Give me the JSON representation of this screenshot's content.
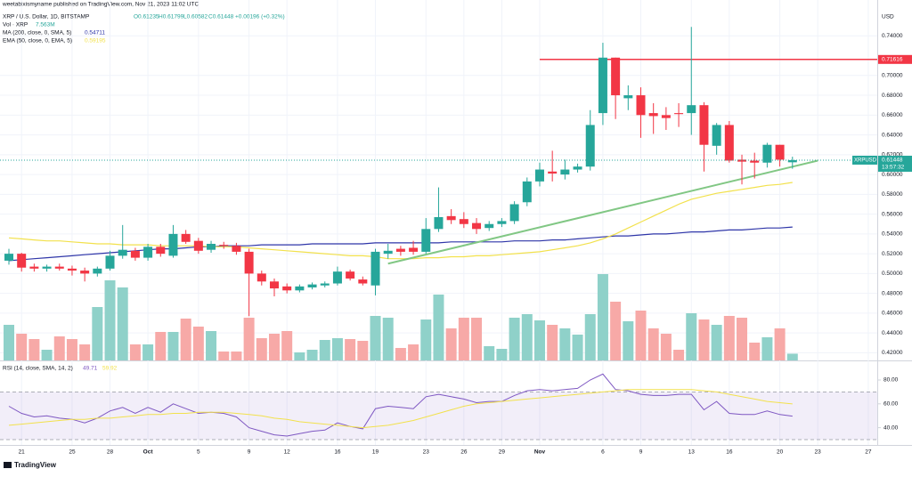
{
  "header": {
    "published": "weetabixismyname published on TradingView.com, Nov 21, 2023 11:02 UTC"
  },
  "footer": {
    "logo": "TradingView"
  },
  "chart_data": [
    {
      "type": "candlestick",
      "title": "XRP / U.S. Dollar, 1D, BITSTAMP",
      "legend_values": [
        "O0.61235",
        "H0.61799",
        "L0.60582",
        "C0.61448",
        "+0.00196 (+0.32%)"
      ],
      "categories": [
        null,
        "21",
        null,
        null,
        null,
        "25",
        null,
        null,
        "28",
        null,
        null,
        "Oct",
        null,
        null,
        null,
        "5",
        null,
        null,
        null,
        "9",
        null,
        null,
        "12",
        null,
        null,
        null,
        "16",
        null,
        null,
        "19",
        null,
        null,
        null,
        "23",
        null,
        null,
        "26",
        null,
        null,
        "29",
        null,
        null,
        "Nov",
        null,
        null,
        null,
        null,
        "6",
        null,
        null,
        "9",
        null,
        null,
        null,
        "13",
        null,
        null,
        "16",
        null,
        null,
        null,
        "20",
        null,
        null,
        "23",
        null,
        null,
        null,
        "27"
      ],
      "open": [
        0.513,
        0.52,
        0.507,
        0.505,
        0.507,
        0.505,
        0.503,
        0.5,
        0.505,
        0.518,
        0.523,
        0.516,
        0.527,
        0.518,
        0.54,
        0.533,
        0.524,
        0.529,
        0.528,
        0.522,
        0.5,
        0.492,
        0.487,
        0.483,
        0.486,
        0.488,
        0.49,
        0.502,
        0.494,
        0.488,
        0.52,
        0.525,
        0.526,
        0.522,
        0.545,
        0.558,
        0.555,
        0.551,
        0.546,
        0.55,
        0.553,
        0.572,
        0.593,
        0.603,
        0.6,
        0.605,
        0.608,
        0.662,
        0.718,
        0.677,
        0.68,
        0.662,
        0.66,
        0.662,
        0.662,
        0.67,
        0.629,
        0.65,
        0.615,
        0.614,
        0.612,
        0.63,
        0.61235,
        null,
        null,
        null,
        null,
        null,
        null
      ],
      "high": [
        0.525,
        0.521,
        0.51,
        0.509,
        0.51,
        0.508,
        0.506,
        0.507,
        0.523,
        0.549,
        0.526,
        0.53,
        0.53,
        0.549,
        0.544,
        0.536,
        0.533,
        0.532,
        0.531,
        0.525,
        0.503,
        0.495,
        0.49,
        0.489,
        0.491,
        0.492,
        0.507,
        0.504,
        0.497,
        0.525,
        0.53,
        0.528,
        0.533,
        0.556,
        0.587,
        0.565,
        0.562,
        0.556,
        0.553,
        0.556,
        0.573,
        0.597,
        0.612,
        0.624,
        0.615,
        0.611,
        0.665,
        0.733,
        0.718,
        0.69,
        0.688,
        0.672,
        0.668,
        0.672,
        0.749,
        0.673,
        0.652,
        0.654,
        0.62,
        0.622,
        0.632,
        0.63,
        0.61799,
        null,
        null,
        null,
        null,
        null,
        null
      ],
      "low": [
        0.509,
        0.502,
        0.502,
        0.502,
        0.503,
        0.498,
        0.492,
        0.497,
        0.503,
        0.515,
        0.513,
        0.513,
        0.517,
        0.516,
        0.53,
        0.52,
        0.521,
        0.525,
        0.519,
        0.457,
        0.488,
        0.477,
        0.48,
        0.481,
        0.484,
        0.486,
        0.488,
        0.493,
        0.488,
        0.478,
        0.515,
        0.518,
        0.519,
        0.52,
        0.542,
        0.55,
        0.546,
        0.54,
        0.543,
        0.547,
        0.55,
        0.568,
        0.588,
        0.593,
        0.595,
        0.602,
        0.604,
        0.65,
        0.656,
        0.665,
        0.637,
        0.641,
        0.645,
        0.648,
        0.64,
        0.603,
        0.62,
        0.612,
        0.59,
        0.596,
        0.607,
        0.608,
        0.60582,
        null,
        null,
        null,
        null,
        null,
        null
      ],
      "close": [
        0.52,
        0.506,
        0.505,
        0.507,
        0.505,
        0.503,
        0.5,
        0.505,
        0.518,
        0.524,
        0.516,
        0.527,
        0.52,
        0.54,
        0.532,
        0.523,
        0.53,
        0.528,
        0.522,
        0.5,
        0.492,
        0.485,
        0.483,
        0.487,
        0.489,
        0.49,
        0.502,
        0.495,
        0.49,
        0.522,
        0.523,
        0.522,
        0.522,
        0.545,
        0.557,
        0.554,
        0.55,
        0.545,
        0.55,
        0.553,
        0.57,
        0.593,
        0.605,
        0.601,
        0.605,
        0.608,
        0.65,
        0.718,
        0.68,
        0.68,
        0.66,
        0.659,
        0.657,
        0.661,
        0.67,
        0.63,
        0.65,
        0.614,
        0.613,
        0.612,
        0.63,
        0.615,
        0.61448,
        null,
        null,
        null,
        null,
        null,
        null
      ],
      "up_color": "#26a69a",
      "down_color": "#f23645",
      "volume": {
        "name": "Vol · XRP",
        "value_label": "7.563M",
        "up_color": "#8fd1c9",
        "down_color": "#f7a9a7",
        "values": [
          40,
          30,
          24,
          12,
          27,
          24,
          18,
          60,
          90,
          82,
          18,
          18,
          32,
          32,
          47,
          38,
          33,
          10,
          10,
          48,
          25,
          30,
          33,
          9,
          12,
          23,
          25,
          24,
          22,
          50,
          48,
          14,
          18,
          46,
          74,
          36,
          48,
          48,
          16,
          13,
          48,
          52,
          45,
          40,
          36,
          29,
          52,
          97,
          66,
          44,
          56,
          36,
          30,
          12,
          53,
          46,
          40,
          50,
          48,
          20,
          26,
          36,
          7.563,
          null,
          null,
          null,
          null,
          null,
          null
        ]
      },
      "series": [
        {
          "name": "MA (200, close, 0, SMA, 5)",
          "value_label": "0.54711",
          "color": "#2e35a8",
          "values": [
            0.513,
            0.514,
            0.515,
            0.516,
            0.517,
            0.518,
            0.519,
            0.52,
            0.521,
            0.522,
            0.523,
            0.524,
            0.525,
            0.525,
            0.526,
            0.527,
            0.527,
            0.528,
            0.528,
            0.528,
            0.529,
            0.529,
            0.529,
            0.529,
            0.53,
            0.53,
            0.53,
            0.53,
            0.53,
            0.531,
            0.531,
            0.531,
            0.531,
            0.531,
            0.531,
            0.532,
            0.532,
            0.532,
            0.532,
            0.532,
            0.533,
            0.533,
            0.533,
            0.534,
            0.534,
            0.535,
            0.536,
            0.537,
            0.538,
            0.538,
            0.539,
            0.54,
            0.54,
            0.541,
            0.542,
            0.542,
            0.543,
            0.544,
            0.544,
            0.545,
            0.546,
            0.546,
            0.547,
            null,
            null,
            null,
            null,
            null,
            null
          ]
        },
        {
          "name": "EMA (50, close, 0, EMA, 5)",
          "value_label": "0.59195",
          "color": "#f2e14c",
          "values": [
            0.536,
            0.535,
            0.534,
            0.533,
            0.533,
            0.532,
            0.531,
            0.53,
            0.53,
            0.529,
            0.529,
            0.529,
            0.528,
            0.528,
            0.528,
            0.528,
            0.527,
            0.527,
            0.527,
            0.526,
            0.525,
            0.524,
            0.523,
            0.522,
            0.521,
            0.52,
            0.519,
            0.518,
            0.518,
            0.517,
            0.515,
            0.515,
            0.515,
            0.516,
            0.516,
            0.517,
            0.517,
            0.518,
            0.518,
            0.519,
            0.52,
            0.521,
            0.522,
            0.524,
            0.526,
            0.528,
            0.531,
            0.535,
            0.54,
            0.546,
            0.552,
            0.558,
            0.564,
            0.57,
            0.575,
            0.578,
            0.581,
            0.583,
            0.585,
            0.587,
            0.589,
            0.59,
            0.592,
            null,
            null,
            null,
            null,
            null,
            null
          ]
        }
      ],
      "ylim": [
        0.415,
        0.769
      ],
      "yticks": [
        {
          "value": 0.42,
          "label": "0.42000"
        },
        {
          "value": 0.44,
          "label": "0.44000"
        },
        {
          "value": 0.46,
          "label": "0.46000"
        },
        {
          "value": 0.48,
          "label": "0.48000"
        },
        {
          "value": 0.5,
          "label": "0.50000"
        },
        {
          "value": 0.52,
          "label": "0.52000"
        },
        {
          "value": 0.54,
          "label": "0.54000"
        },
        {
          "value": 0.56,
          "label": "0.56000"
        },
        {
          "value": 0.58,
          "label": "0.58000"
        },
        {
          "value": 0.6,
          "label": "0.60000"
        },
        {
          "value": 0.62,
          "label": "0.62000"
        },
        {
          "value": 0.64,
          "label": "0.64000"
        },
        {
          "value": 0.66,
          "label": "0.66000"
        },
        {
          "value": 0.68,
          "label": "0.68000"
        },
        {
          "value": 0.7,
          "label": "0.70000"
        },
        {
          "value": 0.74,
          "label": "0.74000"
        }
      ],
      "axis_unit": "USD",
      "hline": {
        "value": 0.71616,
        "label": "0.71616",
        "color": "#f23645"
      },
      "trendline": {
        "values": [
          0.51,
          0.614
        ],
        "color": "#81c784"
      },
      "last_price": {
        "symbol": "XRPUSD",
        "label": "0.61448",
        "countdown": "13:57:32",
        "color": "#26a69a"
      },
      "grid": true
    },
    {
      "type": "line",
      "title": "RSI (14, close, SMA, 14, 2)",
      "band": [
        30,
        70
      ],
      "band_color": "#7e57c2",
      "series": [
        {
          "name": "RSI",
          "value_label": "49.71",
          "color": "#7e57c2",
          "values": [
            58,
            52,
            49,
            50,
            48,
            47,
            44,
            48,
            54,
            57,
            52,
            57,
            53,
            60,
            56,
            52,
            53,
            52,
            49,
            40,
            37,
            34,
            33,
            35,
            37,
            38,
            44,
            41,
            39,
            56,
            58,
            57,
            56,
            66,
            68,
            66,
            64,
            61,
            62,
            62,
            67,
            71,
            72,
            71,
            72,
            73,
            80,
            85,
            72,
            71,
            68,
            67,
            67,
            68,
            68,
            55,
            62,
            52,
            51,
            51,
            54,
            51,
            49.71,
            null,
            null,
            null,
            null,
            null,
            null
          ]
        },
        {
          "name": "SMA",
          "value_label": "59.92",
          "color": "#f2e14c",
          "values": [
            42,
            43,
            44,
            45,
            46,
            47,
            47,
            48,
            48,
            49,
            50,
            51,
            51,
            52,
            52,
            53,
            53,
            53,
            52,
            51,
            50,
            48,
            47,
            45,
            44,
            43,
            42,
            41,
            40,
            41,
            42,
            44,
            46,
            49,
            52,
            55,
            58,
            60,
            61,
            62,
            63,
            64,
            65,
            66,
            67,
            68,
            69,
            70,
            71,
            72,
            72,
            72,
            72,
            72,
            72,
            71,
            70,
            68,
            66,
            64,
            62,
            61,
            59.92,
            null,
            null,
            null,
            null,
            null,
            null
          ]
        }
      ],
      "ylim": [
        25.5,
        92.7
      ],
      "yticks": [
        {
          "value": 40,
          "label": "40.00"
        },
        {
          "value": 60,
          "label": "60.00"
        },
        {
          "value": 80,
          "label": "80.00"
        }
      ]
    }
  ]
}
